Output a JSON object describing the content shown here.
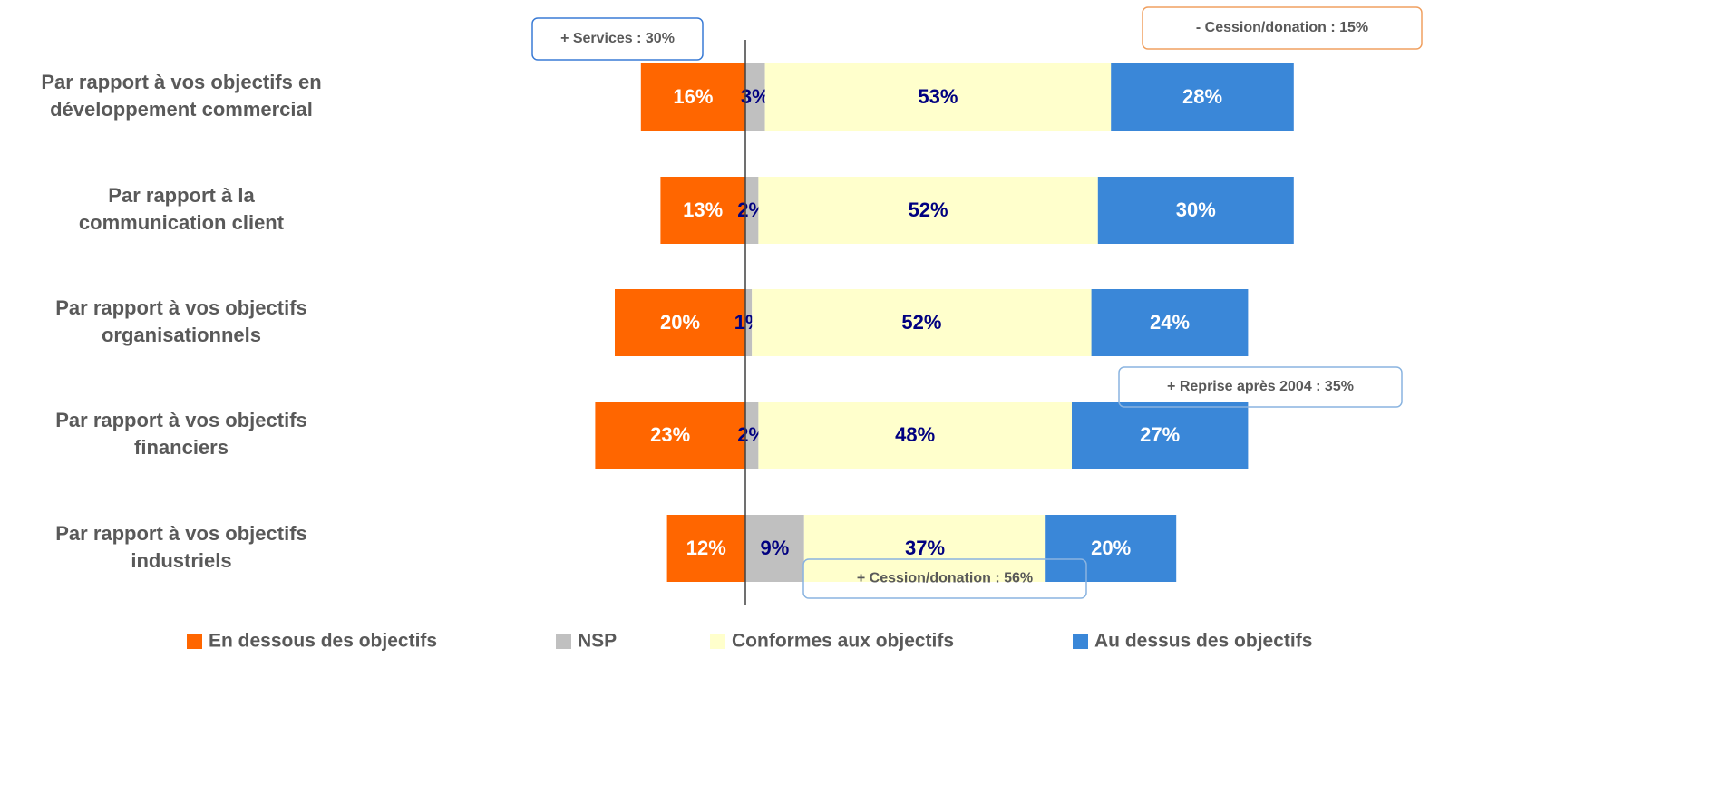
{
  "chart_data": {
    "type": "diverging-bar",
    "categories": [
      [
        "Par rapport à vos objectifs en",
        "développement commercial"
      ],
      [
        "Par rapport à la",
        "communication client"
      ],
      [
        "Par rapport à vos objectifs",
        "organisationnels"
      ],
      [
        "Par rapport à vos objectifs",
        "financiers"
      ],
      [
        "Par rapport à vos objectifs",
        "industriels"
      ]
    ],
    "series": [
      {
        "name": "En dessous des objectifs",
        "color": "#ff6600",
        "label_color": "#ffffff",
        "values": [
          16,
          13,
          20,
          23,
          12
        ],
        "value_labels": [
          "16%",
          "13%",
          "20%",
          "23%",
          "12%"
        ]
      },
      {
        "name": "NSP",
        "color": "#c0c0c0",
        "label_color": "#000080",
        "values": [
          3,
          2,
          1,
          2,
          9
        ],
        "value_labels": [
          "3%",
          "2%",
          "1%",
          "2%",
          "9%"
        ]
      },
      {
        "name": "Conformes aux objectifs",
        "color": "#ffffcc",
        "label_color": "#000080",
        "values": [
          53,
          52,
          52,
          48,
          37
        ],
        "value_labels": [
          "53%",
          "52%",
          "52%",
          "48%",
          "37%"
        ]
      },
      {
        "name": "Au dessus des objectifs",
        "color": "#3a87d8",
        "label_color": "#ffffff",
        "values": [
          28,
          30,
          24,
          27,
          20
        ],
        "value_labels": [
          "28%",
          "30%",
          "24%",
          "27%",
          "20%"
        ]
      }
    ],
    "xlim": [
      -30,
      100
    ],
    "annotations": [
      {
        "text": "+ Services : 30%",
        "color": "#3a7bd5"
      },
      {
        "text": "- Cession/donation : 15%",
        "color": "#f0a060"
      },
      {
        "text": "+ Reprise après 2004 : 35%",
        "color": "#8ab4e0"
      },
      {
        "text": "+ Cession/donation : 56%",
        "color": "#8ab4e0"
      }
    ]
  }
}
